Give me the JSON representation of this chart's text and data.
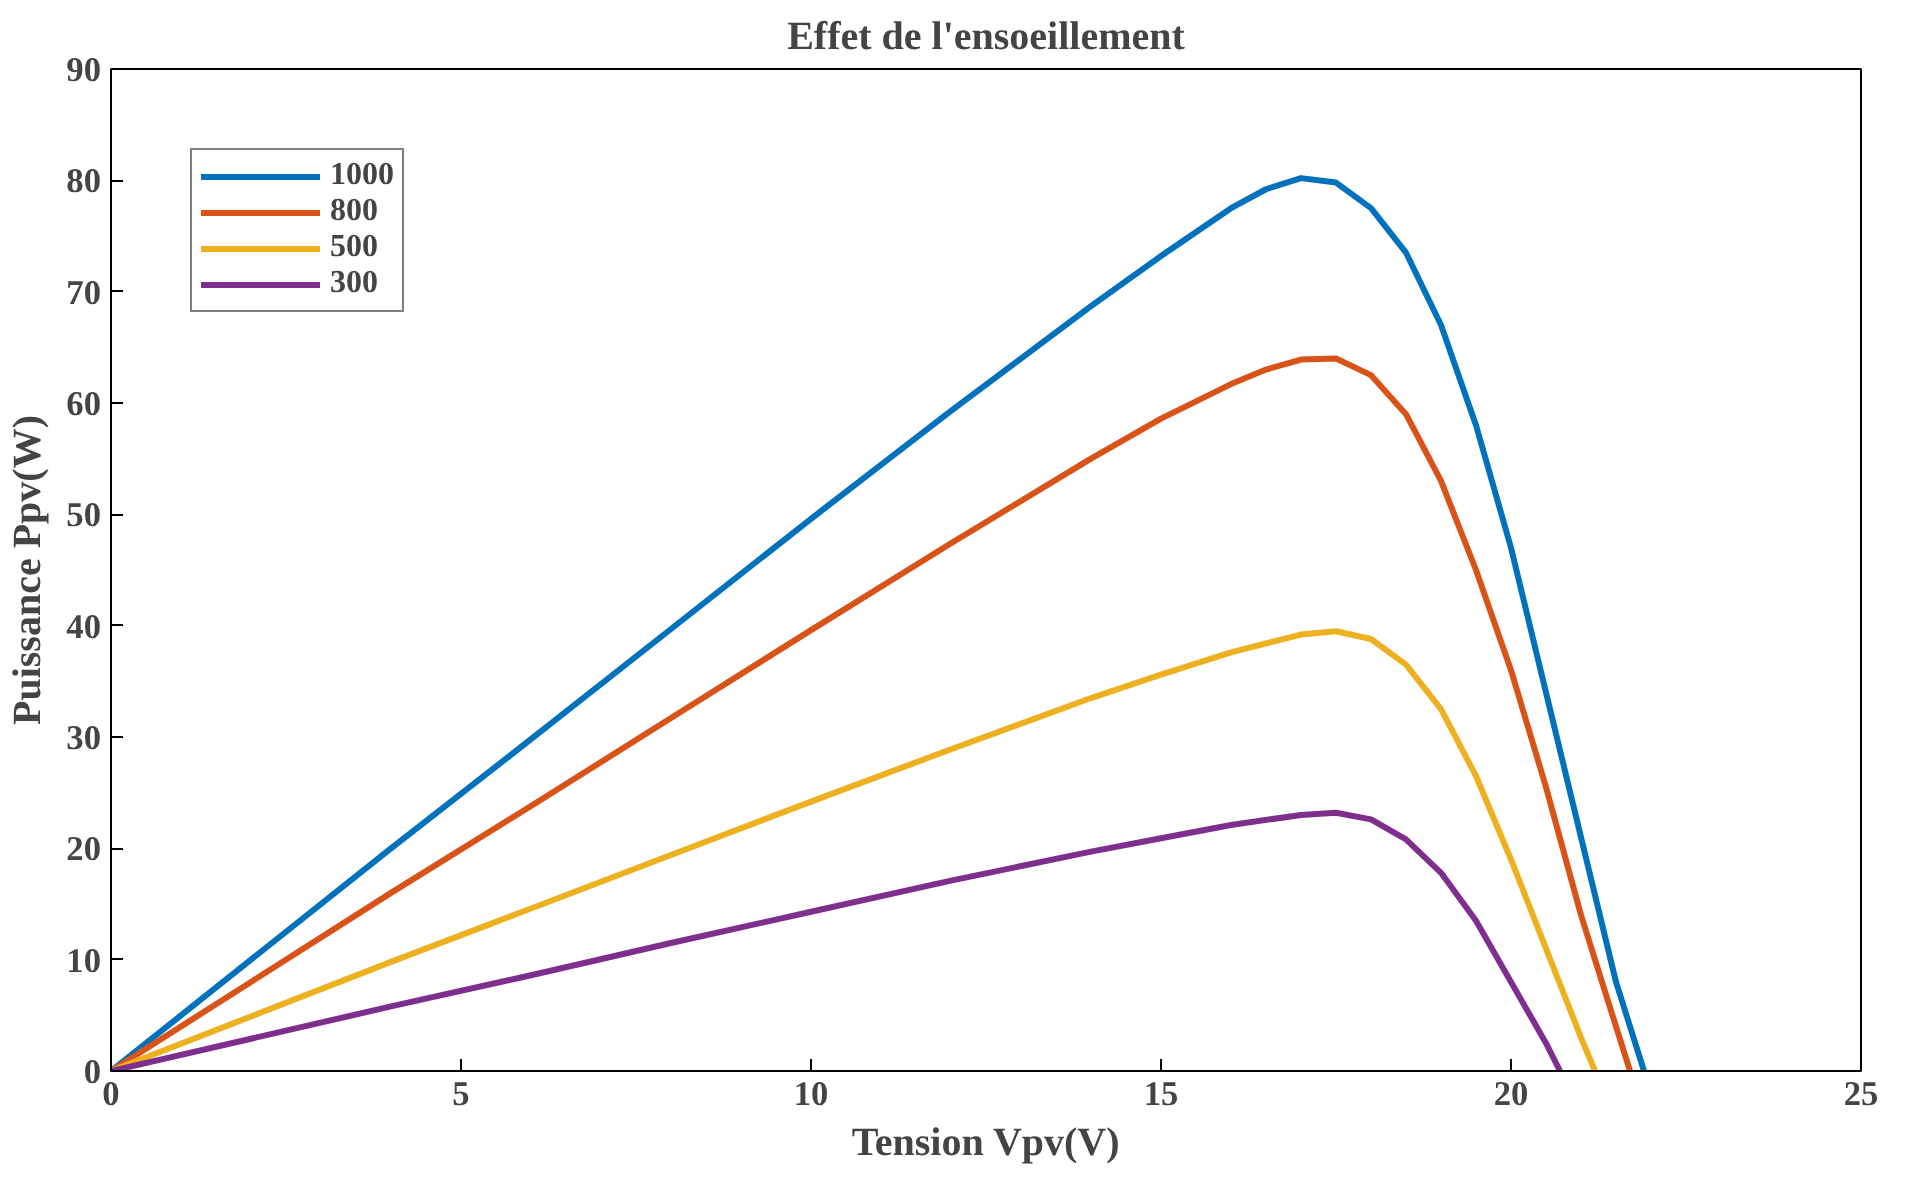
{
  "chart_data": {
    "type": "line",
    "title": "Effet de l'ensoeillement",
    "xlabel": "Tension Vpv(V)",
    "ylabel": "Puissance Ppv(W)",
    "xlim": [
      0,
      25
    ],
    "ylim": [
      0,
      90
    ],
    "xticks": [
      0,
      5,
      10,
      15,
      20,
      25
    ],
    "yticks": [
      0,
      10,
      20,
      30,
      40,
      50,
      60,
      70,
      80,
      90
    ],
    "grid": false,
    "legend": "top left",
    "line_style": "solid",
    "marker": "none",
    "series": [
      {
        "name": "1000",
        "color": "#0072bd",
        "x": [
          0,
          2,
          4,
          6,
          8,
          10,
          12,
          14,
          15,
          16,
          16.5,
          17,
          17.5,
          18,
          18.5,
          19,
          19.5,
          20,
          20.5,
          21,
          21.5,
          21.9
        ],
        "values": [
          0,
          10,
          20,
          29.8,
          39.7,
          49.6,
          59.3,
          68.7,
          73.2,
          77.5,
          79.2,
          80.2,
          79.8,
          77.5,
          73.5,
          67,
          58,
          47,
          34,
          21,
          8,
          0
        ]
      },
      {
        "name": "800",
        "color": "#d95319",
        "x": [
          0,
          2,
          4,
          6,
          8,
          10,
          12,
          14,
          15,
          16,
          16.5,
          17,
          17.5,
          18,
          18.5,
          19,
          19.5,
          20,
          20.5,
          21,
          21.5,
          21.7
        ],
        "values": [
          0,
          8,
          16,
          23.8,
          31.7,
          39.6,
          47.4,
          55,
          58.6,
          61.7,
          63,
          63.9,
          64,
          62.5,
          59,
          53,
          45,
          36,
          25.5,
          14,
          4,
          0
        ]
      },
      {
        "name": "500",
        "color": "#edb120",
        "x": [
          0,
          2,
          4,
          6,
          8,
          10,
          12,
          14,
          15,
          16,
          17,
          17.5,
          18,
          18.5,
          19,
          19.5,
          20,
          20.5,
          21,
          21.2
        ],
        "values": [
          0,
          4.9,
          9.8,
          14.6,
          19.4,
          24.2,
          28.9,
          33.5,
          35.6,
          37.6,
          39.2,
          39.5,
          38.8,
          36.5,
          32.5,
          26.5,
          19,
          11,
          3,
          0
        ]
      },
      {
        "name": "300",
        "color": "#7e2f8e",
        "x": [
          0,
          2,
          4,
          6,
          8,
          10,
          12,
          14,
          15,
          16,
          17,
          17.5,
          18,
          18.5,
          19,
          19.5,
          20,
          20.5,
          20.7
        ],
        "values": [
          0,
          2.9,
          5.8,
          8.6,
          11.5,
          14.3,
          17.1,
          19.7,
          20.9,
          22.1,
          23,
          23.2,
          22.6,
          20.8,
          17.8,
          13.5,
          8,
          2.5,
          0
        ]
      }
    ]
  }
}
